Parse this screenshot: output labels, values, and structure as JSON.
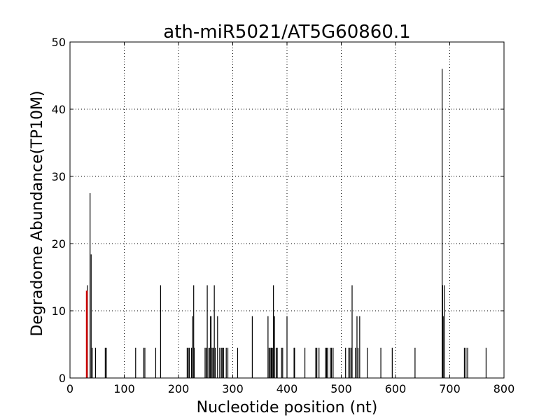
{
  "chart_data": {
    "type": "bar",
    "title": "ath-miR5021/AT5G60860.1",
    "xlabel": "Nucleotide position (nt)",
    "ylabel": "Degradome Abundance(TP10M)",
    "xlim": [
      0,
      800
    ],
    "ylim": [
      0,
      50
    ],
    "xticks": [
      0,
      100,
      200,
      300,
      400,
      500,
      600,
      700,
      800
    ],
    "yticks": [
      0,
      10,
      20,
      30,
      40,
      50
    ],
    "grid": true,
    "colors": {
      "default": "#000000",
      "highlight": "#cc0000"
    },
    "highlight": {
      "x": 31,
      "value": 13
    },
    "x": [
      32,
      37,
      39,
      41,
      47,
      65,
      67,
      121,
      136,
      138,
      158,
      167,
      216,
      218,
      220,
      224,
      226,
      228,
      229,
      249,
      251,
      253,
      256,
      257,
      259,
      260,
      262,
      264,
      266,
      268,
      272,
      276,
      279,
      281,
      283,
      288,
      291,
      309,
      336,
      365,
      367,
      369,
      371,
      372,
      374,
      375,
      377,
      380,
      382,
      390,
      392,
      400,
      413,
      414,
      433,
      453,
      455,
      459,
      471,
      473,
      475,
      480,
      482,
      485,
      508,
      514,
      516,
      519,
      520,
      526,
      529,
      531,
      534,
      548,
      573,
      594,
      636,
      686,
      687,
      688,
      690,
      727,
      730,
      733,
      767
    ],
    "values": [
      13.8,
      27.5,
      18.4,
      4.5,
      4.5,
      4.5,
      4.5,
      4.5,
      4.5,
      4.5,
      4.5,
      13.8,
      4.5,
      4.5,
      4.5,
      4.5,
      9.2,
      13.8,
      4.5,
      4.5,
      4.5,
      13.8,
      4.5,
      4.5,
      9.2,
      9.2,
      4.5,
      4.5,
      13.8,
      4.5,
      9.2,
      4.5,
      4.5,
      4.5,
      4.5,
      4.5,
      4.5,
      4.5,
      9.2,
      9.2,
      4.5,
      4.5,
      4.5,
      4.5,
      4.5,
      13.8,
      9.2,
      4.5,
      4.5,
      4.5,
      4.5,
      9.2,
      4.5,
      4.5,
      4.5,
      4.5,
      4.5,
      4.5,
      4.5,
      4.5,
      4.5,
      4.5,
      4.5,
      4.5,
      4.5,
      4.5,
      4.5,
      4.5,
      13.8,
      4.5,
      9.2,
      4.5,
      9.2,
      4.5,
      4.5,
      4.5,
      4.5,
      46.0,
      13.8,
      9.2,
      13.8,
      4.5,
      4.5,
      4.5,
      4.5
    ]
  }
}
